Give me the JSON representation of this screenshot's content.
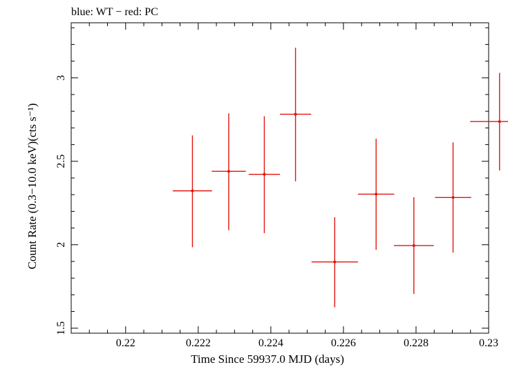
{
  "chart_data": {
    "type": "scatter",
    "title": "blue: WT − red: PC",
    "xlabel": "Time Since 59937.0 MJD (days)",
    "ylabel": "Count Rate (0.3−10.0 keV)(cts s⁻¹)",
    "xlim": [
      0.2185,
      0.23
    ],
    "ylim": [
      1.47,
      3.33
    ],
    "xticks": [
      0.22,
      0.222,
      0.224,
      0.226,
      0.228,
      0.23
    ],
    "xtick_labels": [
      "0.22",
      "0.222",
      "0.224",
      "0.226",
      "0.228",
      "0.23"
    ],
    "yticks": [
      1.5,
      2.0,
      2.5,
      3.0
    ],
    "ytick_labels": [
      "1.5",
      "2",
      "2.5",
      "3"
    ],
    "grid": false,
    "series": [
      {
        "name": "PC",
        "color": "#e0140e",
        "points": [
          {
            "x": 0.22184,
            "xerr_lo": 0.00054,
            "xerr_hi": 0.00054,
            "y": 2.323,
            "yerr_lo": 0.338,
            "yerr_hi": 0.332
          },
          {
            "x": 0.22284,
            "xerr_lo": 0.00047,
            "xerr_hi": 0.00047,
            "y": 2.44,
            "yerr_lo": 0.353,
            "yerr_hi": 0.347
          },
          {
            "x": 0.22382,
            "xerr_lo": 0.00043,
            "xerr_hi": 0.00043,
            "y": 2.422,
            "yerr_lo": 0.352,
            "yerr_hi": 0.348
          },
          {
            "x": 0.22468,
            "xerr_lo": 0.00043,
            "xerr_hi": 0.00043,
            "y": 2.782,
            "yerr_lo": 0.402,
            "yerr_hi": 0.398
          },
          {
            "x": 0.22576,
            "xerr_lo": 0.00064,
            "xerr_hi": 0.00064,
            "y": 1.897,
            "yerr_lo": 0.272,
            "yerr_hi": 0.268
          },
          {
            "x": 0.2269,
            "xerr_lo": 0.0005,
            "xerr_hi": 0.0005,
            "y": 2.303,
            "yerr_lo": 0.333,
            "yerr_hi": 0.332
          },
          {
            "x": 0.22794,
            "xerr_lo": 0.00055,
            "xerr_hi": 0.00055,
            "y": 1.995,
            "yerr_lo": 0.29,
            "yerr_hi": 0.29
          },
          {
            "x": 0.22902,
            "xerr_lo": 0.0005,
            "xerr_hi": 0.0005,
            "y": 2.283,
            "yerr_lo": 0.33,
            "yerr_hi": 0.33
          },
          {
            "x": 0.2303,
            "xerr_lo": 0.00081,
            "xerr_hi": 0.00081,
            "y": 2.738,
            "yerr_lo": 0.293,
            "yerr_hi": 0.292
          }
        ]
      }
    ]
  }
}
